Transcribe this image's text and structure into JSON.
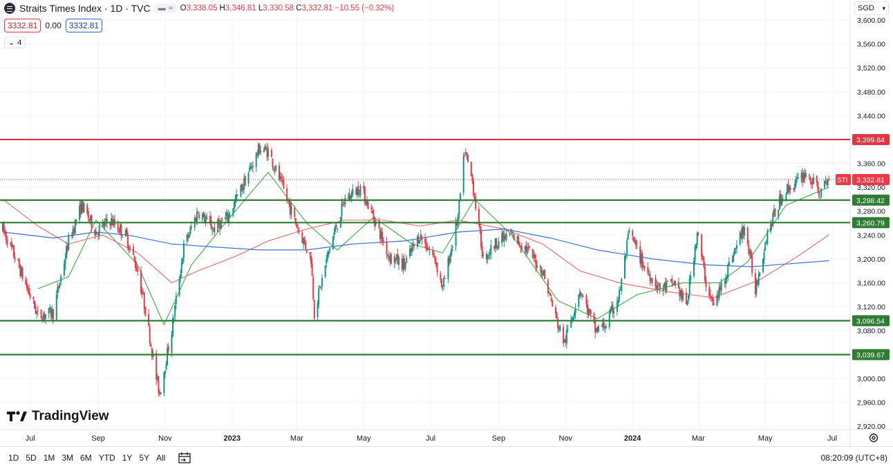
{
  "header": {
    "symbol_title": "Straits Times Index · 1D · TVC",
    "ohlc": {
      "open_label": "O",
      "open": "3,338.05",
      "high_label": "H",
      "high": "3,346.81",
      "low_label": "L",
      "low": "3,330.58",
      "close_label": "C",
      "close": "3,332.81",
      "change": "−10.55 (−0.32%)"
    },
    "bid": "3332.81",
    "spread": "0.00",
    "ask": "3332.81",
    "indicators_count": "4",
    "currency": "SGD"
  },
  "logo_text": "TradingView",
  "bottom": {
    "ranges": [
      "1D",
      "5D",
      "1M",
      "3M",
      "6M",
      "YTD",
      "1Y",
      "5Y",
      "All"
    ],
    "clock": "08:20:09 (UTC+8)"
  },
  "colors": {
    "up": "#089981",
    "down": "#f23645",
    "resistance": "#e03540",
    "support": "#2e7d32",
    "ma_fast": "#4caf50",
    "ma_mid": "#e57373",
    "ma_slow": "#3b6fd4"
  },
  "chart_data": {
    "type": "candlestick",
    "title": "Straits Times Index · 1D · TVC",
    "ylim": [
      2910,
      3610
    ],
    "y_ticks": [
      3600,
      3560,
      3520,
      3480,
      3440,
      3400,
      3360,
      3320,
      3280,
      3240,
      3200,
      3160,
      3120,
      3080,
      3040,
      3000,
      2960,
      2920
    ],
    "y_tick_labels": [
      "3,600.00",
      "3,560.00",
      "3,520.00",
      "3,480.00",
      "3,440.00",
      "3,400.00",
      "3,360.00",
      "3,320.00",
      "3,280.00",
      "3,240.00",
      "3,200.00",
      "3,160.00",
      "3,120.00",
      "3,080.00",
      "3,040.00",
      "3,000.00",
      "2,960.00",
      "2,920.00"
    ],
    "x_ticks": [
      {
        "label": "Jul",
        "date": "2022-07-01",
        "bold": false
      },
      {
        "label": "Sep",
        "date": "2022-09-01",
        "bold": false
      },
      {
        "label": "Nov",
        "date": "2022-11-01",
        "bold": false
      },
      {
        "label": "2023",
        "date": "2023-01-01",
        "bold": true
      },
      {
        "label": "Mar",
        "date": "2023-03-01",
        "bold": false
      },
      {
        "label": "May",
        "date": "2023-05-01",
        "bold": false
      },
      {
        "label": "Jul",
        "date": "2023-07-01",
        "bold": false
      },
      {
        "label": "Sep",
        "date": "2023-09-01",
        "bold": false
      },
      {
        "label": "Nov",
        "date": "2023-11-01",
        "bold": false
      },
      {
        "label": "2024",
        "date": "2024-01-01",
        "bold": true
      },
      {
        "label": "Mar",
        "date": "2024-03-01",
        "bold": false
      },
      {
        "label": "May",
        "date": "2024-05-01",
        "bold": false
      },
      {
        "label": "Jul",
        "date": "2024-07-01",
        "bold": false
      }
    ],
    "horizontal_levels": [
      {
        "value": 3399.84,
        "label": "3,399.84",
        "kind": "resistance"
      },
      {
        "value": 3298.42,
        "label": "3,298.42",
        "kind": "support"
      },
      {
        "value": 3260.79,
        "label": "3,260.79",
        "kind": "support"
      },
      {
        "value": 3096.54,
        "label": "3,096.54",
        "kind": "support"
      },
      {
        "value": 3039.67,
        "label": "3,039.67",
        "kind": "support"
      }
    ],
    "last_price": {
      "symbol": "STI",
      "value": 3332.81,
      "label": "3,332.81"
    },
    "price_path": [
      [
        "2022-06-06",
        3250
      ],
      [
        "2022-06-20",
        3190
      ],
      [
        "2022-07-08",
        3105
      ],
      [
        "2022-07-22",
        3110
      ],
      [
        "2022-08-05",
        3230
      ],
      [
        "2022-08-17",
        3290
      ],
      [
        "2022-08-30",
        3245
      ],
      [
        "2022-09-12",
        3265
      ],
      [
        "2022-09-26",
        3240
      ],
      [
        "2022-10-07",
        3180
      ],
      [
        "2022-10-14",
        3115
      ],
      [
        "2022-10-24",
        3000
      ],
      [
        "2022-10-27",
        2975
      ],
      [
        "2022-11-07",
        3080
      ],
      [
        "2022-11-18",
        3220
      ],
      [
        "2022-12-01",
        3280
      ],
      [
        "2022-12-15",
        3250
      ],
      [
        "2022-12-28",
        3270
      ],
      [
        "2023-01-10",
        3320
      ],
      [
        "2023-01-26",
        3385
      ],
      [
        "2023-02-03",
        3380
      ],
      [
        "2023-02-14",
        3330
      ],
      [
        "2023-02-27",
        3265
      ],
      [
        "2023-03-14",
        3200
      ],
      [
        "2023-03-17",
        3110
      ],
      [
        "2023-03-31",
        3220
      ],
      [
        "2023-04-14",
        3300
      ],
      [
        "2023-04-28",
        3320
      ],
      [
        "2023-05-10",
        3270
      ],
      [
        "2023-05-24",
        3205
      ],
      [
        "2023-06-07",
        3190
      ],
      [
        "2023-06-21",
        3240
      ],
      [
        "2023-07-05",
        3200
      ],
      [
        "2023-07-12",
        3150
      ],
      [
        "2023-07-26",
        3270
      ],
      [
        "2023-08-01",
        3380
      ],
      [
        "2023-08-08",
        3330
      ],
      [
        "2023-08-18",
        3200
      ],
      [
        "2023-08-31",
        3230
      ],
      [
        "2023-09-13",
        3240
      ],
      [
        "2023-09-27",
        3215
      ],
      [
        "2023-10-11",
        3180
      ],
      [
        "2023-10-25",
        3090
      ],
      [
        "2023-10-31",
        3060
      ],
      [
        "2023-11-14",
        3150
      ],
      [
        "2023-11-28",
        3080
      ],
      [
        "2023-12-08",
        3090
      ],
      [
        "2023-12-20",
        3140
      ],
      [
        "2023-12-29",
        3245
      ],
      [
        "2024-01-12",
        3185
      ],
      [
        "2024-01-26",
        3150
      ],
      [
        "2024-02-09",
        3160
      ],
      [
        "2024-02-19",
        3120
      ],
      [
        "2024-02-29",
        3245
      ],
      [
        "2024-03-08",
        3160
      ],
      [
        "2024-03-15",
        3120
      ],
      [
        "2024-03-29",
        3190
      ],
      [
        "2024-04-12",
        3255
      ],
      [
        "2024-04-22",
        3150
      ],
      [
        "2024-05-03",
        3245
      ],
      [
        "2024-05-17",
        3310
      ],
      [
        "2024-05-31",
        3330
      ],
      [
        "2024-06-07",
        3345
      ],
      [
        "2024-06-20",
        3310
      ],
      [
        "2024-06-28",
        3333
      ]
    ],
    "moving_averages": [
      {
        "kind": "ma_fast",
        "points": [
          [
            "2022-07-08",
            3150
          ],
          [
            "2022-08-05",
            3170
          ],
          [
            "2022-08-30",
            3265
          ],
          [
            "2022-10-07",
            3190
          ],
          [
            "2022-10-31",
            3090
          ],
          [
            "2022-11-25",
            3190
          ],
          [
            "2022-12-28",
            3265
          ],
          [
            "2023-02-03",
            3345
          ],
          [
            "2023-03-10",
            3260
          ],
          [
            "2023-04-07",
            3215
          ],
          [
            "2023-05-10",
            3270
          ],
          [
            "2023-06-14",
            3225
          ],
          [
            "2023-07-12",
            3210
          ],
          [
            "2023-08-10",
            3300
          ],
          [
            "2023-09-13",
            3240
          ],
          [
            "2023-10-25",
            3130
          ],
          [
            "2023-11-30",
            3100
          ],
          [
            "2024-01-05",
            3140
          ],
          [
            "2024-02-16",
            3160
          ],
          [
            "2024-03-20",
            3160
          ],
          [
            "2024-04-15",
            3195
          ],
          [
            "2024-05-20",
            3290
          ],
          [
            "2024-06-28",
            3320
          ]
        ]
      },
      {
        "kind": "ma_mid",
        "points": [
          [
            "2022-06-06",
            3300
          ],
          [
            "2022-07-08",
            3255
          ],
          [
            "2022-08-05",
            3225
          ],
          [
            "2022-09-05",
            3240
          ],
          [
            "2022-10-07",
            3210
          ],
          [
            "2022-11-07",
            3160
          ],
          [
            "2022-12-01",
            3180
          ],
          [
            "2023-01-05",
            3205
          ],
          [
            "2023-02-03",
            3230
          ],
          [
            "2023-03-10",
            3250
          ],
          [
            "2023-04-14",
            3265
          ],
          [
            "2023-05-19",
            3265
          ],
          [
            "2023-06-21",
            3255
          ],
          [
            "2023-07-26",
            3265
          ],
          [
            "2023-09-06",
            3250
          ],
          [
            "2023-10-11",
            3225
          ],
          [
            "2023-11-14",
            3180
          ],
          [
            "2023-12-20",
            3160
          ],
          [
            "2024-02-02",
            3145
          ],
          [
            "2024-03-15",
            3135
          ],
          [
            "2024-04-26",
            3165
          ],
          [
            "2024-05-31",
            3205
          ],
          [
            "2024-06-28",
            3240
          ]
        ]
      },
      {
        "kind": "ma_slow",
        "points": [
          [
            "2022-06-06",
            3245
          ],
          [
            "2022-07-22",
            3235
          ],
          [
            "2022-08-30",
            3245
          ],
          [
            "2022-09-28",
            3240
          ],
          [
            "2022-11-07",
            3225
          ],
          [
            "2022-12-15",
            3220
          ],
          [
            "2023-01-26",
            3215
          ],
          [
            "2023-03-10",
            3215
          ],
          [
            "2023-04-21",
            3225
          ],
          [
            "2023-06-07",
            3230
          ],
          [
            "2023-07-26",
            3245
          ],
          [
            "2023-09-06",
            3250
          ],
          [
            "2023-10-18",
            3235
          ],
          [
            "2023-11-30",
            3215
          ],
          [
            "2024-01-19",
            3200
          ],
          [
            "2024-03-08",
            3190
          ],
          [
            "2024-04-19",
            3187
          ],
          [
            "2024-05-24",
            3192
          ],
          [
            "2024-06-28",
            3197
          ]
        ]
      }
    ]
  }
}
